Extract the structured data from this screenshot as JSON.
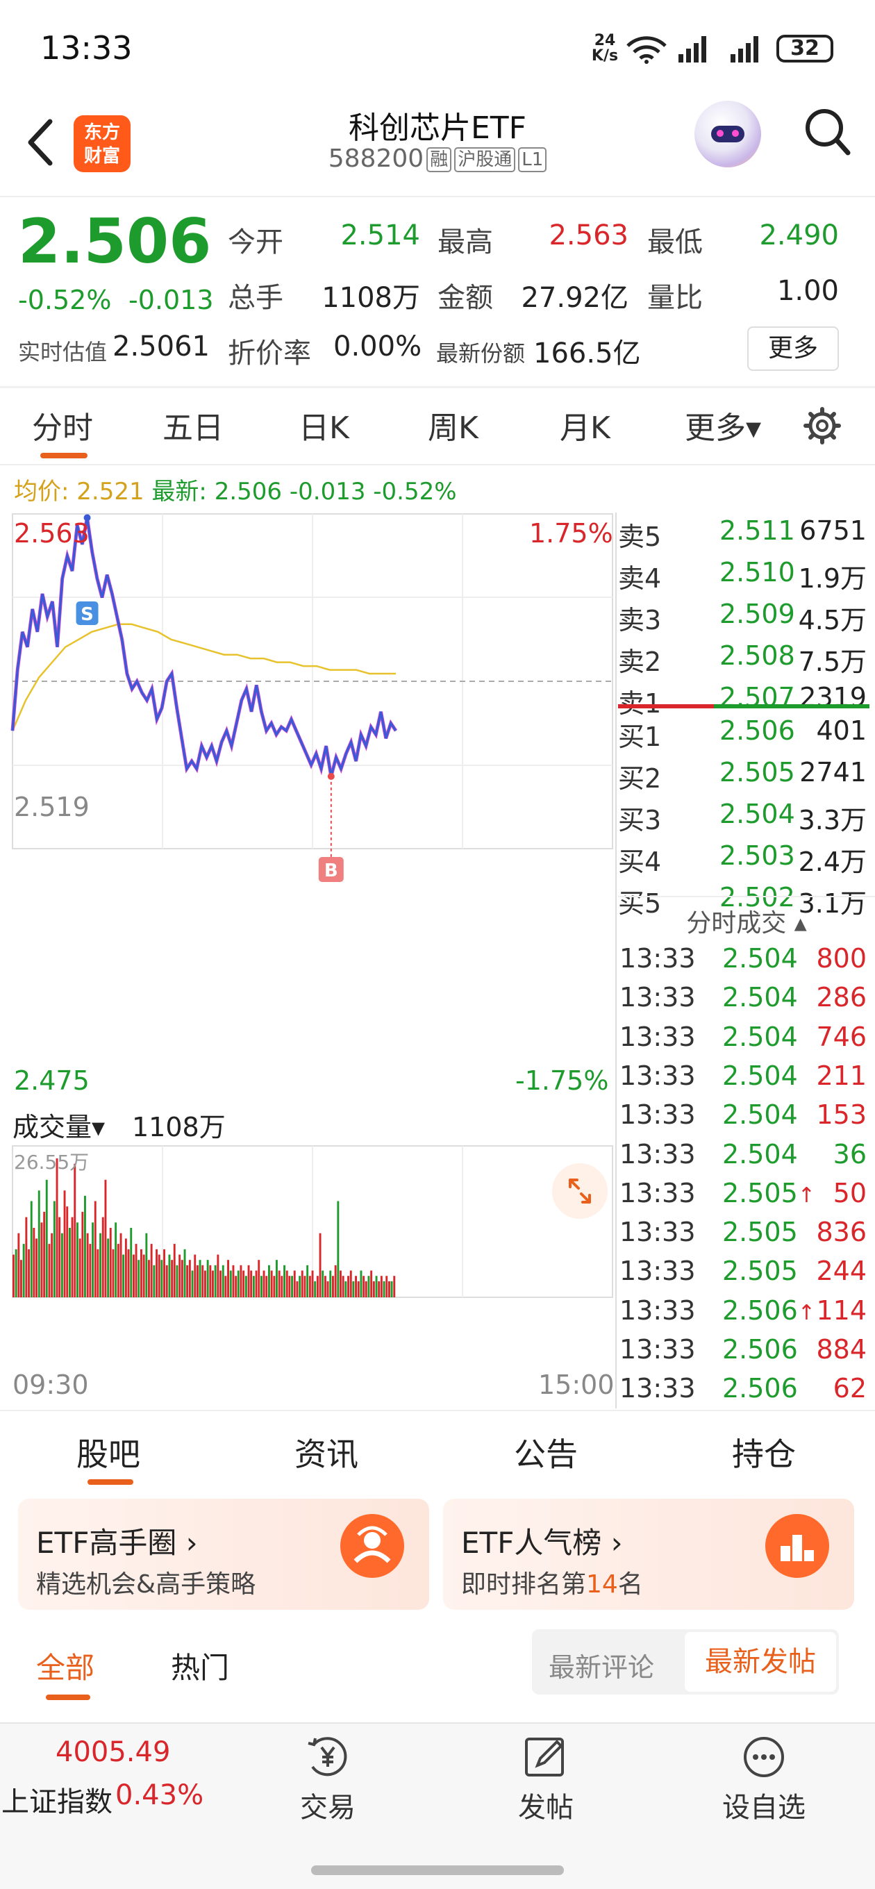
{
  "status_bar": {
    "time": "13:33",
    "net_speed_top": "24",
    "net_speed_unit": "K/s",
    "battery": "32"
  },
  "nav": {
    "logo_line1": "东方",
    "logo_line2": "财富",
    "title": "科创芯片ETF",
    "code": "588200",
    "tags": [
      "融",
      "沪股通",
      "L1"
    ]
  },
  "quote": {
    "price": "2.506",
    "change_pct": "-0.52%",
    "change": "-0.013",
    "open_label": "今开",
    "open": "2.514",
    "high_label": "最高",
    "high": "2.563",
    "low_label": "最低",
    "low": "2.490",
    "volume_label": "总手",
    "volume": "1108万",
    "amount_label": "金额",
    "amount": "27.92亿",
    "ratio_label": "量比",
    "ratio": "1.00",
    "est_label": "实时估值",
    "est": "2.5061",
    "premium_label": "折价率",
    "premium": "0.00%",
    "shares_label": "最新份额",
    "shares": "166.5亿",
    "more_label": "更多"
  },
  "chart_tabs": [
    "分时",
    "五日",
    "日K",
    "周K",
    "月K",
    "更多▾"
  ],
  "avg_line": {
    "avg_label": "均价:",
    "avg": "2.521",
    "latest_label": "最新:",
    "latest": "2.506 -0.013 -0.52%"
  },
  "chart_data": {
    "type": "line",
    "y_top": "2.563",
    "y_mid": "2.519",
    "y_bottom": "2.475",
    "pct_top": "1.75%",
    "pct_bottom": "-1.75%",
    "ylim": [
      2.475,
      2.563
    ],
    "x_start": "09:30",
    "x_end": "15:00",
    "marker_s": "S",
    "marker_b": "B",
    "price_series": [
      2.506,
      2.522,
      2.532,
      2.528,
      2.538,
      2.532,
      2.542,
      2.536,
      2.54,
      2.528,
      2.546,
      2.552,
      2.548,
      2.56,
      2.555,
      2.562,
      2.553,
      2.546,
      2.541,
      2.547,
      2.542,
      2.536,
      2.53,
      2.521,
      2.517,
      2.519,
      2.516,
      2.514,
      2.517,
      2.509,
      2.512,
      2.519,
      2.521,
      2.512,
      2.504,
      2.496,
      2.498,
      2.496,
      2.502,
      2.499,
      2.502,
      2.498,
      2.503,
      2.506,
      2.502,
      2.508,
      2.514,
      2.517,
      2.511,
      2.518,
      2.511,
      2.506,
      2.508,
      2.505,
      2.507,
      2.506,
      2.509,
      2.506,
      2.503,
      2.5,
      2.497,
      2.5,
      2.496,
      2.502,
      2.494,
      2.499,
      2.496,
      2.5,
      2.503,
      2.498,
      2.505,
      2.502,
      2.507,
      2.505,
      2.511,
      2.504,
      2.508,
      2.506
    ],
    "avg_series": [
      2.506,
      2.514,
      2.52,
      2.524,
      2.528,
      2.53,
      2.532,
      2.533,
      2.534,
      2.534,
      2.533,
      2.532,
      2.53,
      2.529,
      2.528,
      2.527,
      2.526,
      2.526,
      2.525,
      2.525,
      2.524,
      2.524,
      2.523,
      2.523,
      2.522,
      2.522,
      2.522,
      2.521,
      2.521,
      2.521
    ],
    "volume_label": "成交量▾",
    "volume_total": "1108万",
    "volume_max": "26.55万",
    "volume_series": [
      8,
      9,
      12,
      7,
      10,
      15,
      9,
      18,
      13,
      11,
      20,
      14,
      16,
      22,
      10,
      12,
      18,
      26,
      15,
      12,
      20,
      17,
      13,
      15,
      25,
      14,
      11,
      16,
      19,
      12,
      10,
      14,
      18,
      9,
      12,
      15,
      22,
      11,
      13,
      9,
      14,
      10,
      12,
      8,
      11,
      9,
      13,
      8,
      10,
      7,
      9,
      8,
      12,
      7,
      10,
      6,
      9,
      8,
      7,
      9,
      6,
      8,
      7,
      10,
      6,
      8,
      7,
      9,
      6,
      7,
      5,
      8,
      6,
      7,
      6,
      5,
      7,
      6,
      5,
      6,
      8,
      5,
      6,
      4,
      7,
      5,
      6,
      4,
      5,
      6,
      5,
      4,
      6,
      5,
      4,
      5,
      7,
      4,
      5,
      4,
      6,
      5,
      4,
      7,
      5,
      4,
      6,
      5,
      4,
      4,
      5,
      3,
      4,
      5,
      4,
      6,
      4,
      5,
      3,
      4,
      12,
      5,
      4,
      3,
      5,
      4,
      6,
      18,
      5,
      4,
      3,
      4,
      5,
      3,
      4,
      3,
      5,
      4,
      3,
      4,
      5,
      3,
      4,
      3,
      4,
      3,
      4,
      3,
      3,
      4
    ]
  },
  "order_book": {
    "asks": [
      {
        "label": "卖5",
        "price": "2.511",
        "vol": "6751"
      },
      {
        "label": "卖4",
        "price": "2.510",
        "vol": "1.9万"
      },
      {
        "label": "卖3",
        "price": "2.509",
        "vol": "4.5万"
      },
      {
        "label": "卖2",
        "price": "2.508",
        "vol": "7.5万"
      },
      {
        "label": "卖1",
        "price": "2.507",
        "vol": "2319"
      }
    ],
    "bids": [
      {
        "label": "买1",
        "price": "2.506",
        "vol": "401"
      },
      {
        "label": "买2",
        "price": "2.505",
        "vol": "2741"
      },
      {
        "label": "买3",
        "price": "2.504",
        "vol": "3.3万"
      },
      {
        "label": "买4",
        "price": "2.503",
        "vol": "2.4万"
      },
      {
        "label": "买5",
        "price": "2.502",
        "vol": "3.1万"
      }
    ]
  },
  "trades": {
    "header": "分时成交 ▴",
    "rows": [
      {
        "time": "13:33",
        "price": "2.504",
        "vol": "800"
      },
      {
        "time": "13:33",
        "price": "2.504",
        "vol": "286"
      },
      {
        "time": "13:33",
        "price": "2.504",
        "vol": "746"
      },
      {
        "time": "13:33",
        "price": "2.504",
        "vol": "211"
      },
      {
        "time": "13:33",
        "price": "2.504",
        "vol": "153"
      },
      {
        "time": "13:33",
        "price": "2.504",
        "vol": "36"
      },
      {
        "time": "13:33",
        "price": "2.505↑",
        "vol": "50"
      },
      {
        "time": "13:33",
        "price": "2.505",
        "vol": "836"
      },
      {
        "time": "13:33",
        "price": "2.505",
        "vol": "244"
      },
      {
        "time": "13:33",
        "price": "2.506↑",
        "vol": "114"
      },
      {
        "time": "13:33",
        "price": "2.506",
        "vol": "884"
      },
      {
        "time": "13:33",
        "price": "2.506",
        "vol": "62"
      }
    ]
  },
  "section_tabs": [
    "股吧",
    "资讯",
    "公告",
    "持仓"
  ],
  "cards": [
    {
      "title": "ETF高手圈 ›",
      "sub": "精选机会&高手策略"
    },
    {
      "title": "ETF人气榜 ›",
      "sub_prefix": "即时排名第",
      "rank": "14",
      "sub_suffix": "名"
    }
  ],
  "comments": {
    "all": "全部",
    "hot": "热门",
    "latest_comment": "最新评论",
    "latest_post": "最新发帖"
  },
  "bottom_bar": {
    "index_value": "4005.49",
    "index_name": "上证指数",
    "index_change": "0.43%",
    "items": [
      "交易",
      "发帖",
      "设自选"
    ]
  },
  "colors": {
    "up": "#d9262a",
    "down": "#1e9b2d",
    "accent": "#e8601c",
    "price_line": "#3b5bd6",
    "avg_line": "#e8c22c"
  }
}
